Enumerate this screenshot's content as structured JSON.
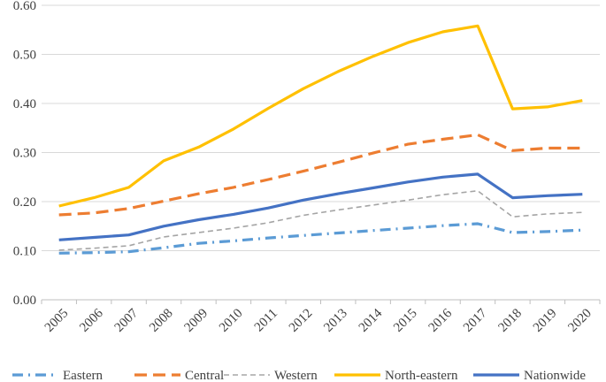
{
  "chart_data": {
    "type": "line",
    "title": "",
    "xlabel": "",
    "ylabel": "",
    "x": [
      "2005",
      "2006",
      "2007",
      "2008",
      "2009",
      "2010",
      "2011",
      "2012",
      "2013",
      "2014",
      "2015",
      "2016",
      "2017",
      "2018",
      "2019",
      "2020"
    ],
    "ylim": [
      0,
      0.6
    ],
    "yticks": [
      "0.00",
      "0.10",
      "0.20",
      "0.30",
      "0.40",
      "0.50",
      "0.60"
    ],
    "grid": true,
    "legend_position": "bottom",
    "series": [
      {
        "name": "Eastern",
        "color": "#5B9BD5",
        "dash": "dashdot",
        "values": [
          0.095,
          0.096,
          0.098,
          0.106,
          0.115,
          0.12,
          0.126,
          0.131,
          0.136,
          0.141,
          0.146,
          0.151,
          0.155,
          0.137,
          0.139,
          0.142
        ]
      },
      {
        "name": "Central",
        "color": "#ED7D31",
        "dash": "longdash",
        "values": [
          0.173,
          0.177,
          0.186,
          0.201,
          0.216,
          0.229,
          0.245,
          0.262,
          0.28,
          0.299,
          0.317,
          0.327,
          0.336,
          0.304,
          0.309,
          0.309
        ]
      },
      {
        "name": "Western",
        "color": "#A5A5A5",
        "dash": "shortdash",
        "values": [
          0.101,
          0.105,
          0.11,
          0.128,
          0.137,
          0.146,
          0.157,
          0.172,
          0.183,
          0.193,
          0.203,
          0.214,
          0.222,
          0.169,
          0.175,
          0.178
        ]
      },
      {
        "name": "North-eastern",
        "color": "#FFC000",
        "dash": "solid",
        "values": [
          0.191,
          0.208,
          0.229,
          0.283,
          0.311,
          0.348,
          0.39,
          0.43,
          0.465,
          0.496,
          0.524,
          0.546,
          0.558,
          0.389,
          0.393,
          0.406
        ]
      },
      {
        "name": "Nationwide",
        "color": "#4472C4",
        "dash": "solid",
        "values": [
          0.122,
          0.127,
          0.132,
          0.15,
          0.163,
          0.174,
          0.187,
          0.203,
          0.216,
          0.228,
          0.24,
          0.25,
          0.256,
          0.208,
          0.212,
          0.215
        ]
      }
    ]
  }
}
